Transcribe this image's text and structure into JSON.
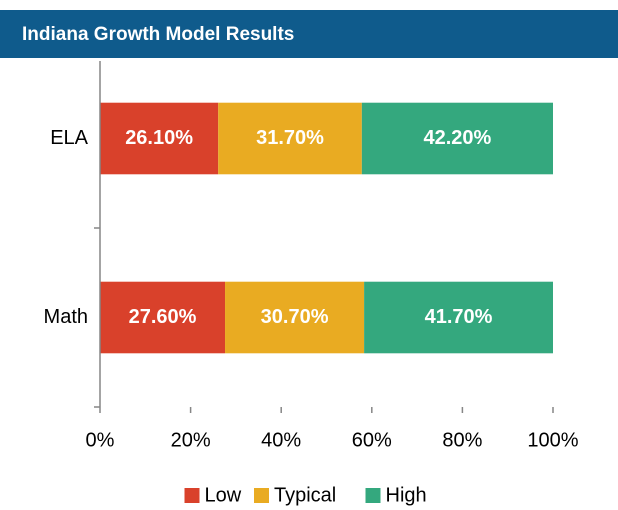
{
  "chart_data": {
    "type": "stacked_bar_horizontal",
    "title": "Indiana Growth Model Results",
    "categories": [
      "ELA",
      "Math"
    ],
    "series": [
      {
        "name": "Low",
        "color": "#d9412b",
        "values": [
          26.1,
          27.6
        ],
        "value_labels": [
          "26.10%",
          "27.60%"
        ]
      },
      {
        "name": "Typical",
        "color": "#e9ab22",
        "values": [
          31.7,
          30.7
        ],
        "value_labels": [
          "31.70%",
          "30.70%"
        ]
      },
      {
        "name": "High",
        "color": "#34a87e",
        "values": [
          42.2,
          41.7
        ],
        "value_labels": [
          "42.20%",
          "41.70%"
        ]
      }
    ],
    "xlim": [
      0,
      100
    ],
    "xticks": [
      {
        "value": 0,
        "label": "0%"
      },
      {
        "value": 20,
        "label": "20%"
      },
      {
        "value": 40,
        "label": "40%"
      },
      {
        "value": 60,
        "label": "60%"
      },
      {
        "value": 80,
        "label": "80%"
      },
      {
        "value": 100,
        "label": "100%"
      }
    ],
    "legend": "bottom"
  }
}
